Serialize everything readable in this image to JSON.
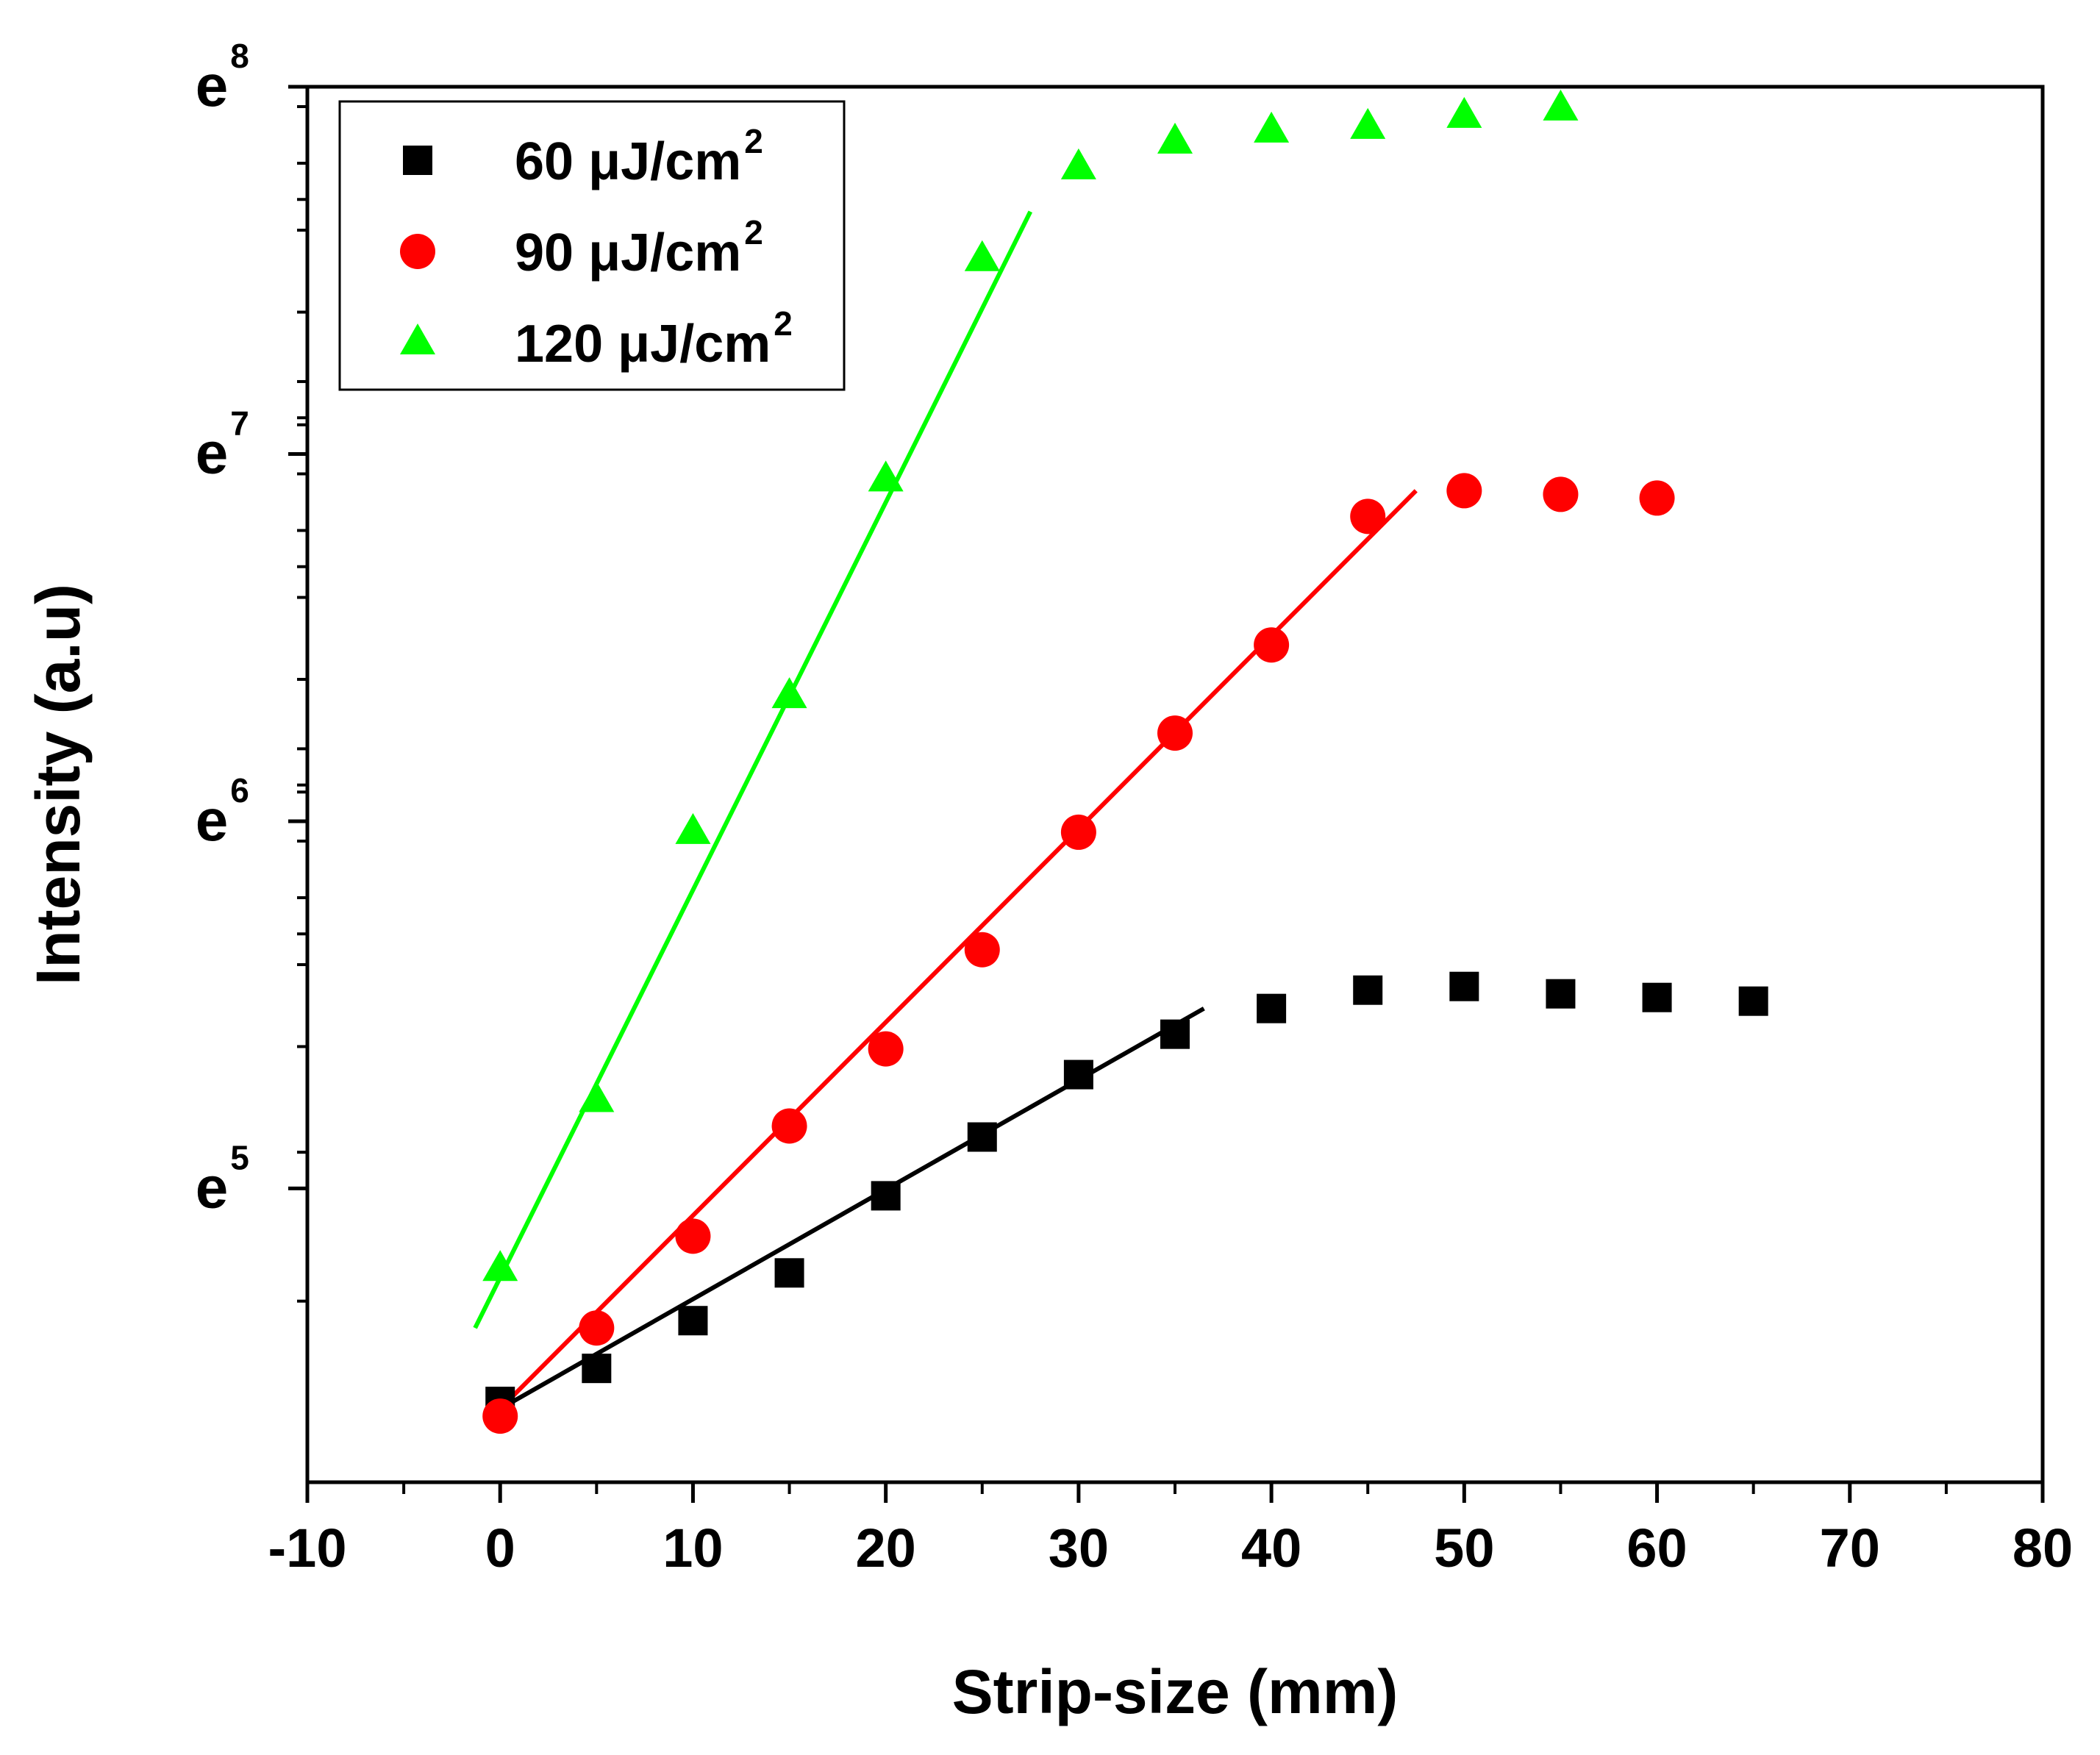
{
  "chart_data": {
    "type": "scatter",
    "xlabel": "Strip-size (mm)",
    "ylabel": "Intensity (a.u)",
    "y_scale": "ln",
    "xlim": [
      -10,
      80
    ],
    "ylim": [
      4.2,
      8.0
    ],
    "x_ticks": [
      -10,
      0,
      10,
      20,
      30,
      40,
      50,
      60,
      70,
      80
    ],
    "x_tick_labels": [
      "-10",
      "0",
      "10",
      "20",
      "30",
      "40",
      "50",
      "60",
      "70",
      "80"
    ],
    "y_ticks": [
      {
        "value": 5,
        "base": "e",
        "exp": "5"
      },
      {
        "value": 6,
        "base": "e",
        "exp": "6"
      },
      {
        "value": 7,
        "base": "e",
        "exp": "7"
      },
      {
        "value": 8,
        "base": "e",
        "exp": "8"
      }
    ],
    "legend_position": "top-left",
    "series": [
      {
        "name": "60 μJ/cm2",
        "legend_main": "60 μJ/cm",
        "legend_sup": "2",
        "marker": "square",
        "color": "#000000",
        "x": [
          0,
          5,
          10,
          15,
          20,
          25,
          30,
          35,
          40,
          45,
          50,
          55,
          60,
          65
        ],
        "y": [
          4.42,
          4.51,
          4.64,
          4.77,
          4.98,
          5.14,
          5.31,
          5.42,
          5.49,
          5.54,
          5.55,
          5.53,
          5.52,
          5.51
        ],
        "fit": {
          "x": [
            0,
            36.5
          ],
          "y": [
            4.4,
            5.49
          ]
        }
      },
      {
        "name": "90 μJ/cm2",
        "legend_main": "90 μJ/cm",
        "legend_sup": "2",
        "marker": "circle",
        "color": "#ff0000",
        "x": [
          0,
          5,
          10,
          15,
          20,
          25,
          30,
          35,
          40,
          45,
          50,
          55,
          60
        ],
        "y": [
          4.38,
          4.62,
          4.87,
          5.17,
          5.38,
          5.65,
          5.97,
          6.24,
          6.48,
          6.83,
          6.9,
          6.89,
          6.88
        ],
        "fit": {
          "x": [
            0,
            47.5
          ],
          "y": [
            4.4,
            6.9
          ]
        }
      },
      {
        "name": "120 μJ/cm2",
        "legend_main": "120 μJ/cm",
        "legend_sup": "2",
        "marker": "triangle",
        "color": "#00ff00",
        "x": [
          0,
          5,
          10,
          15,
          20,
          25,
          30,
          35,
          40,
          45,
          50,
          55
        ],
        "y": [
          4.78,
          5.24,
          5.97,
          6.34,
          6.93,
          7.53,
          7.78,
          7.85,
          7.88,
          7.89,
          7.92,
          7.94
        ],
        "fit": {
          "x": [
            -1.3,
            27.5
          ],
          "y": [
            4.62,
            7.66
          ]
        }
      }
    ]
  }
}
